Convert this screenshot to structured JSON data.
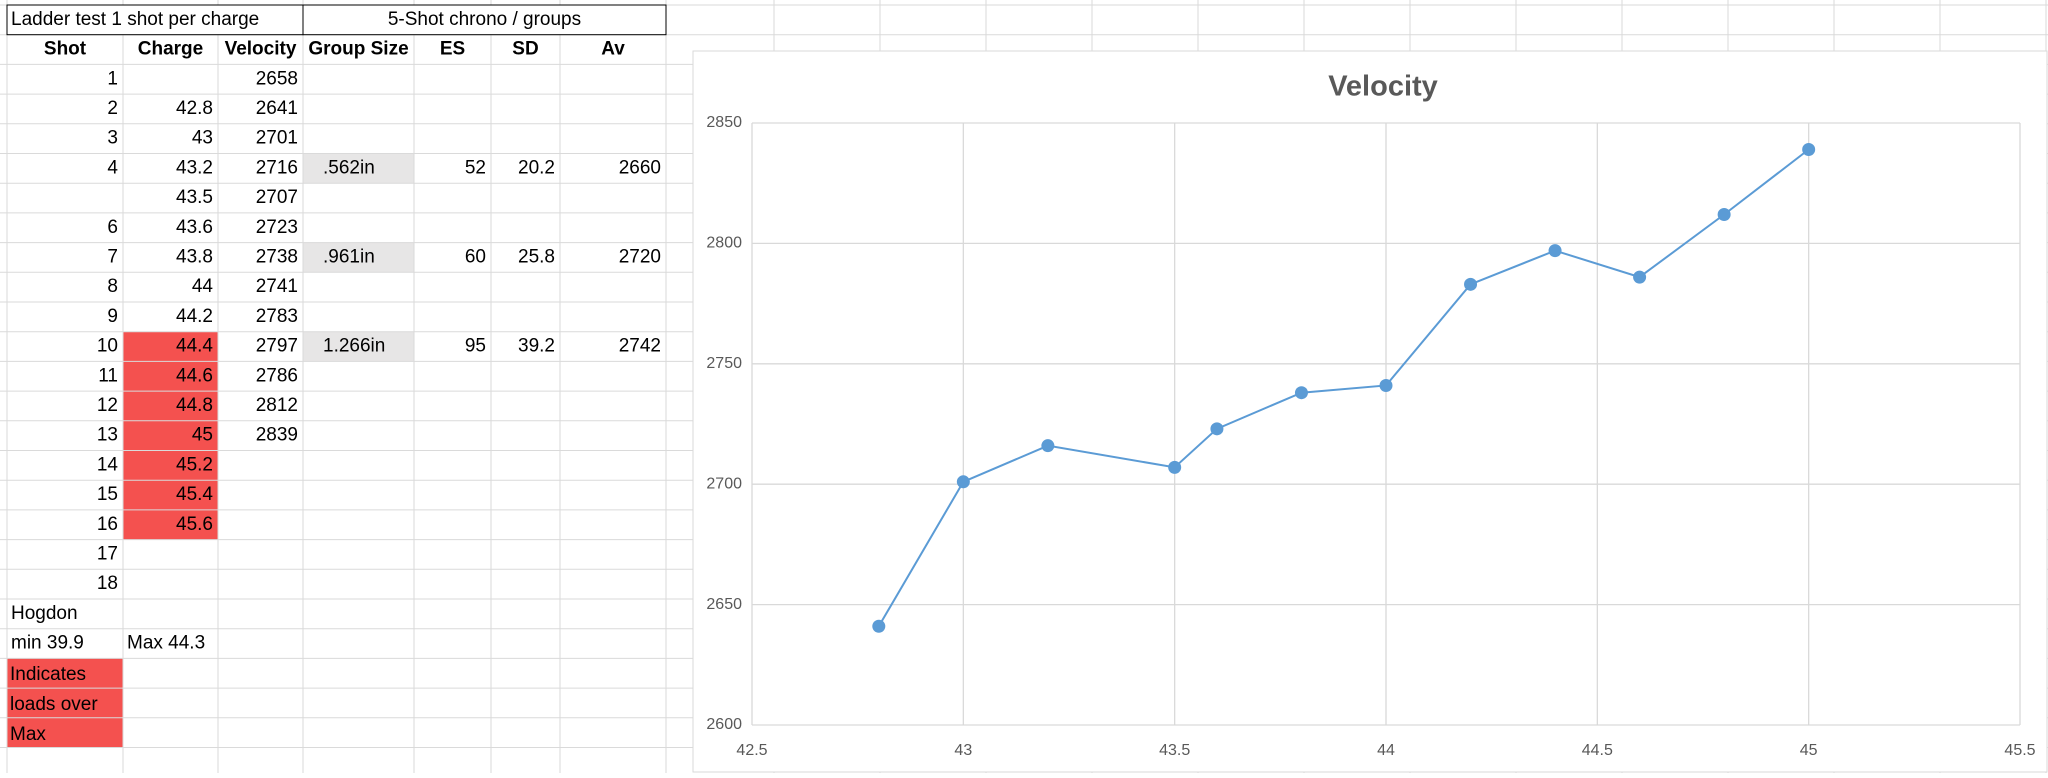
{
  "sheet": {
    "title": "Ladder test 1 shot per charge",
    "group_title": "5-Shot chrono / groups",
    "headers": [
      "Shot",
      "Charge",
      "Velocity",
      "Group Size",
      "ES",
      "SD",
      "Av"
    ],
    "rows": [
      [
        1,
        null,
        2658
      ],
      [
        2,
        42.8,
        2641
      ],
      [
        3,
        43,
        2701
      ],
      [
        4,
        43.2,
        2716,
        ".562in",
        52,
        20.2,
        2660
      ],
      [
        null,
        43.5,
        2707
      ],
      [
        6,
        43.6,
        2723
      ],
      [
        7,
        43.8,
        2738,
        ".961in",
        60,
        25.8,
        2720
      ],
      [
        8,
        44,
        2741
      ],
      [
        9,
        44.2,
        2783
      ],
      [
        10,
        44.4,
        2797,
        "1.266in",
        95,
        39.2,
        2742
      ],
      [
        11,
        44.6,
        2786
      ],
      [
        12,
        44.8,
        2812
      ],
      [
        13,
        45,
        2839
      ],
      [
        14,
        45.2
      ],
      [
        15,
        45.4
      ],
      [
        16,
        45.6
      ],
      [
        17
      ],
      [
        18
      ]
    ],
    "source": "Hogdon",
    "min": "min 39.9",
    "max": "Max 44.3",
    "legend_note": "Indicates loads over Max",
    "highlight_color": "#f4514f"
  },
  "chart_data": {
    "type": "line",
    "title": "Velocity",
    "x": [
      42.8,
      43,
      43.2,
      43.5,
      43.6,
      43.8,
      44,
      44.2,
      44.4,
      44.6,
      44.8,
      45
    ],
    "series": [
      {
        "name": "Velocity",
        "color": "#5b9bd5",
        "values": [
          2641,
          2701,
          2716,
          2707,
          2723,
          2738,
          2741,
          2783,
          2797,
          2786,
          2812,
          2839
        ]
      }
    ],
    "xlim": [
      42.5,
      45.5
    ],
    "xticks": [
      42.5,
      43,
      43.5,
      44,
      44.5,
      45,
      45.5
    ],
    "ylim": [
      2600,
      2850
    ],
    "yticks": [
      2600,
      2650,
      2700,
      2750,
      2800,
      2850
    ],
    "grid": true
  }
}
